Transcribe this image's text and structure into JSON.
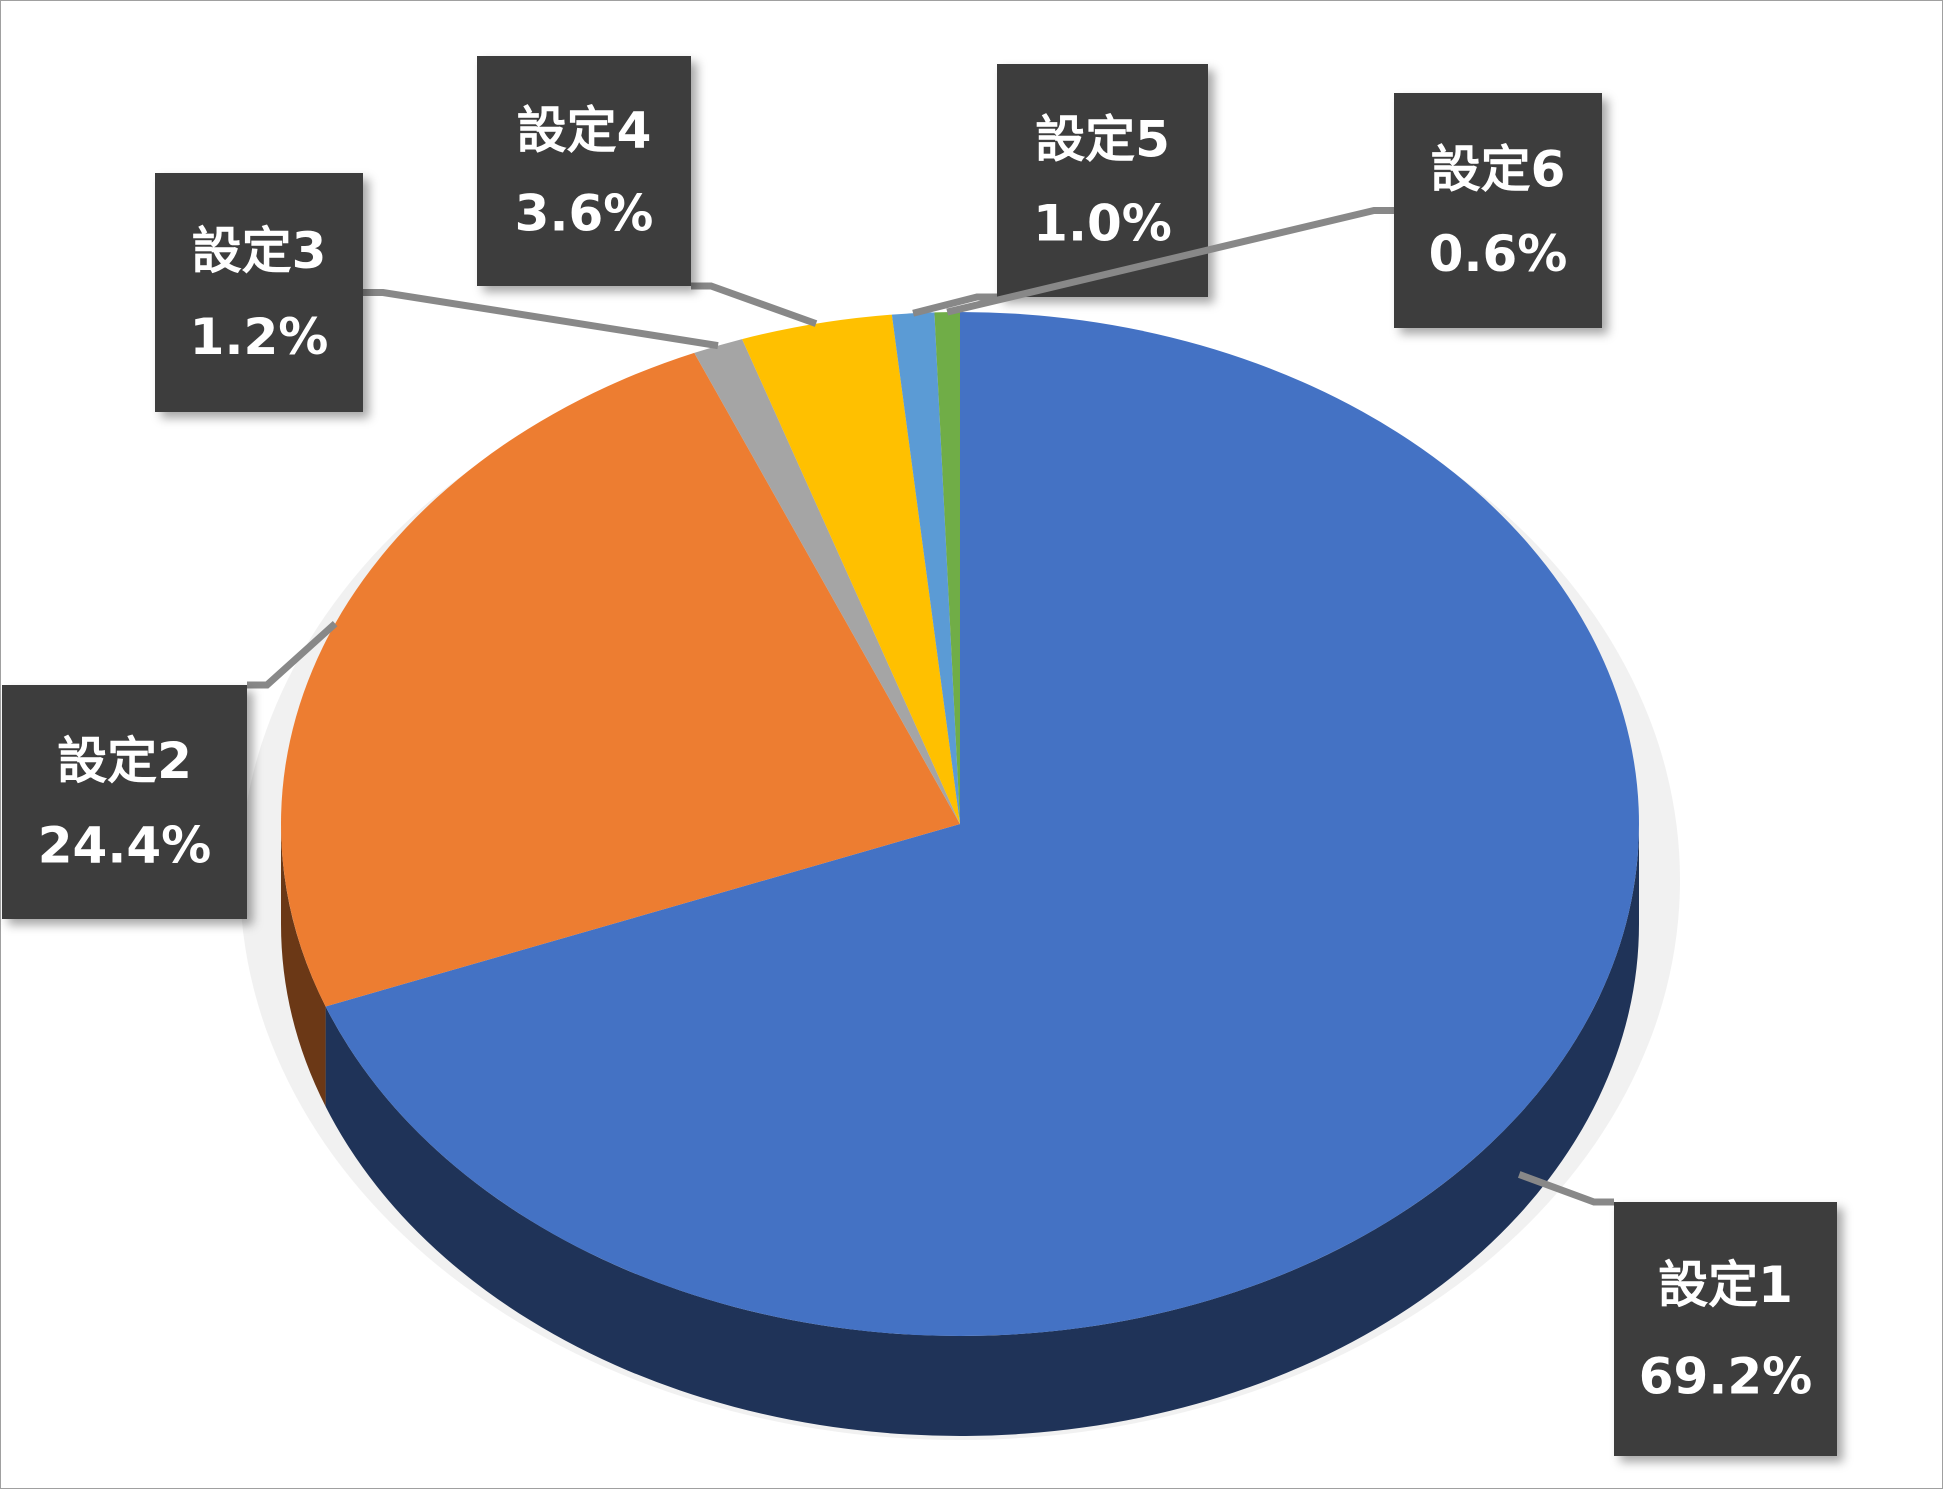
{
  "chart_data": {
    "type": "pie",
    "categories": [
      "設定1",
      "設定2",
      "設定3",
      "設定4",
      "設定5",
      "設定6"
    ],
    "values": [
      69.2,
      24.4,
      1.2,
      3.6,
      1.0,
      0.6
    ],
    "value_labels": [
      "69.2%",
      "24.4%",
      "1.2%",
      "3.6%",
      "1.0%",
      "0.6%"
    ],
    "colors": [
      "#4472c4",
      "#ed7d31",
      "#a5a5a5",
      "#ffc000",
      "#5b9bd5",
      "#70ad47"
    ]
  }
}
